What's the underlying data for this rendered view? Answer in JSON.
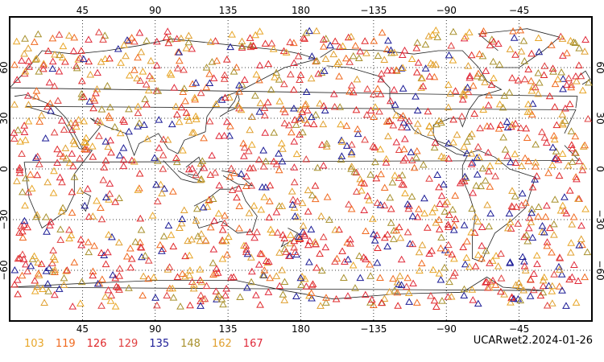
{
  "map": {
    "top_lon_ticks": [
      "45",
      "90",
      "135",
      "180",
      "−135",
      "−90",
      "−45"
    ],
    "bottom_lon_ticks": [
      "45",
      "90",
      "135",
      "180",
      "−135",
      "−90",
      "−45"
    ],
    "lat_ticks": [
      "60",
      "30",
      "0",
      "−30",
      "−60"
    ],
    "lon_range": [
      0,
      360
    ],
    "lat_range": [
      -90,
      90
    ],
    "marker": "open-triangle",
    "grid": true
  },
  "legend": {
    "items": [
      {
        "label": "103",
        "color": "#e8a628"
      },
      {
        "label": "119",
        "color": "#f06a20"
      },
      {
        "label": "126",
        "color": "#e0282a"
      },
      {
        "label": "129",
        "color": "#e04040"
      },
      {
        "label": "135",
        "color": "#1c1c96"
      },
      {
        "label": "148",
        "color": "#a8902c"
      },
      {
        "label": "162",
        "color": "#e0a030"
      },
      {
        "label": "167",
        "color": "#e02a3a"
      }
    ],
    "title": "UCARwet2.2024-01-26"
  }
}
